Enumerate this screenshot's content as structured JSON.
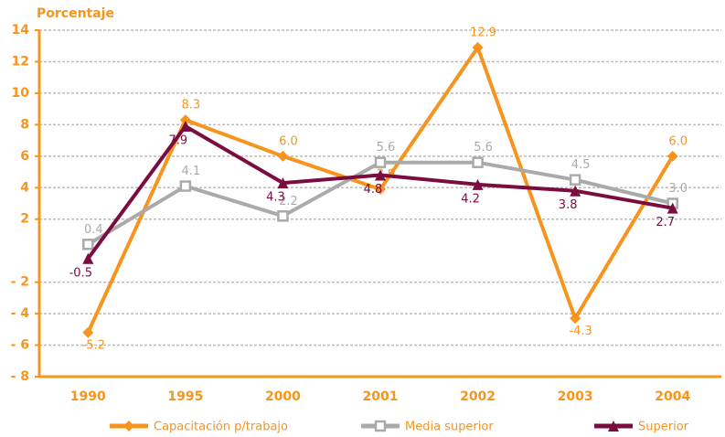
{
  "chart_data": {
    "type": "line",
    "y_axis_label": "Porcentaje",
    "categories": [
      "1990",
      "1995",
      "2000",
      "2001",
      "2002",
      "2003",
      "2004"
    ],
    "series": [
      {
        "name": "Capacitación p/trabajo",
        "color": "#f7941d",
        "marker": "diamond",
        "values": [
          -5.2,
          8.3,
          6.0,
          3.9,
          12.9,
          -4.3,
          6.0
        ],
        "value_labels": [
          "-5.2",
          "8.3",
          "6.0",
          "3.9",
          "12.9",
          "-4.3",
          "6.0"
        ]
      },
      {
        "name": "Media superior",
        "color": "#aaaaaa",
        "marker": "square",
        "values": [
          0.4,
          4.1,
          2.2,
          5.6,
          5.6,
          4.5,
          3.0
        ],
        "value_labels": [
          "0.4",
          "4.1",
          "2.2",
          "5.6",
          "5.6",
          "4.5",
          "3.0"
        ]
      },
      {
        "name": "Superior",
        "color": "#7b0c3f",
        "marker": "triangle",
        "values": [
          -0.5,
          7.9,
          4.3,
          4.8,
          4.2,
          3.8,
          2.7
        ],
        "value_labels": [
          "-0.5",
          "7.9",
          "4.3",
          "4.8",
          "4.2",
          "3.8",
          "2.7"
        ]
      }
    ],
    "ylim": [
      -8,
      14
    ],
    "yticks": [
      14,
      12,
      10,
      8,
      6,
      4,
      2,
      {
        "value": -2,
        "label": "- 2"
      },
      {
        "value": -4,
        "label": "- 4"
      },
      {
        "value": -6,
        "label": "- 6"
      },
      {
        "value": -8,
        "label": "- 8"
      }
    ],
    "grid": true,
    "legend": "bottom"
  }
}
